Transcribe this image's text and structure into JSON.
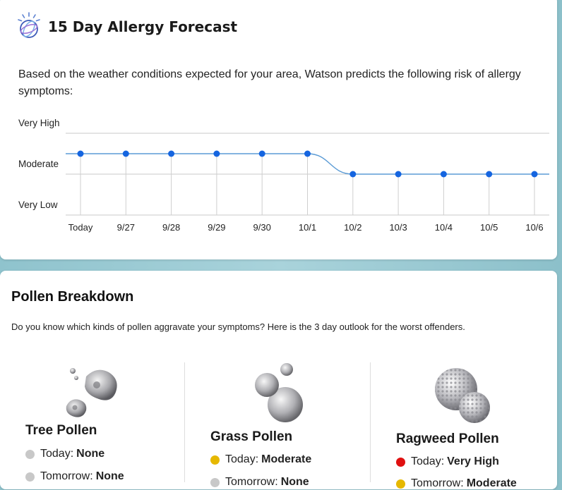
{
  "forecast": {
    "title": "15 Day Allergy Forecast",
    "description": "Based on the weather conditions expected for your area, Watson predicts the following risk of allergy symptoms:",
    "logo_icon": "watson-logo-icon"
  },
  "chart_data": {
    "type": "line",
    "title": "",
    "xlabel": "",
    "ylabel": "",
    "y_levels": [
      "Very Low",
      "Moderate",
      "Very High"
    ],
    "categories": [
      "Today",
      "9/27",
      "9/28",
      "9/29",
      "9/30",
      "10/1",
      "10/2",
      "10/3",
      "10/4",
      "10/5",
      "10/6"
    ],
    "series": [
      {
        "values": [
          1.5,
          1.5,
          1.5,
          1.5,
          1.5,
          1.5,
          1,
          1,
          1,
          1,
          1
        ]
      }
    ],
    "ylim": [
      0,
      2
    ],
    "grid": true,
    "line_color": "#5b9bd5",
    "point_color": "#1565e0"
  },
  "pollen": {
    "title": "Pollen Breakdown",
    "description": "Do you know which kinds of pollen aggravate your symptoms? Here is the 3 day outlook for the worst offenders.",
    "types": [
      {
        "name": "Tree Pollen",
        "icon": "tree-pollen-icon",
        "rows": [
          {
            "label": "Today:",
            "value": "None",
            "color": "#c8c8c8"
          },
          {
            "label": "Tomorrow:",
            "value": "None",
            "color": "#c8c8c8"
          }
        ]
      },
      {
        "name": "Grass Pollen",
        "icon": "grass-pollen-icon",
        "rows": [
          {
            "label": "Today:",
            "value": "Moderate",
            "color": "#e6b800"
          },
          {
            "label": "Tomorrow:",
            "value": "None",
            "color": "#c8c8c8"
          }
        ]
      },
      {
        "name": "Ragweed Pollen",
        "icon": "ragweed-pollen-icon",
        "rows": [
          {
            "label": "Today:",
            "value": "Very High",
            "color": "#e01010"
          },
          {
            "label": "Tomorrow:",
            "value": "Moderate",
            "color": "#e6b800"
          }
        ]
      }
    ]
  }
}
